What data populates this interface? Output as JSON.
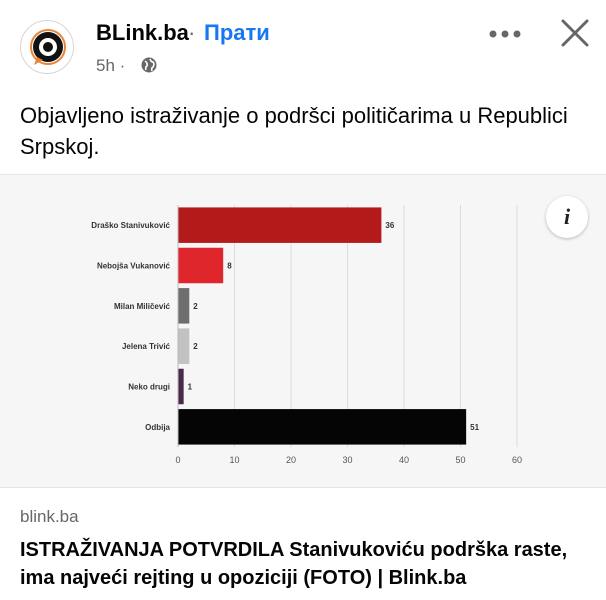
{
  "post": {
    "page_name": "BLink.ba",
    "separator": "·",
    "follow_label": "Прати",
    "time": "5h ·",
    "text": "Objavljeno istraživanje o podršci političarima u Republici Srpskoj."
  },
  "link": {
    "domain": "blink.ba",
    "title": "ISTRAŽIVANJA POTVRDILA Stanivukoviću podrška raste, ima najveći rejting u opoziciji (FOTO) | Blink.ba"
  },
  "info_label": "i",
  "chart_data": {
    "type": "bar",
    "orientation": "horizontal",
    "categories": [
      "Draško Stanivuković",
      "Nebojša Vukanović",
      "Milan Miličević",
      "Jelena Trivić",
      "Neko drugi",
      "Odbija"
    ],
    "values": [
      36,
      8,
      2,
      2,
      1,
      51
    ],
    "colors": [
      "#b31b1b",
      "#e0262d",
      "#6e6e6e",
      "#c2c2c2",
      "#4a2a4a",
      "#050505"
    ],
    "xticks": [
      0,
      10,
      20,
      30,
      40,
      50,
      60
    ],
    "xlim": [
      0,
      60
    ],
    "grid": true
  }
}
